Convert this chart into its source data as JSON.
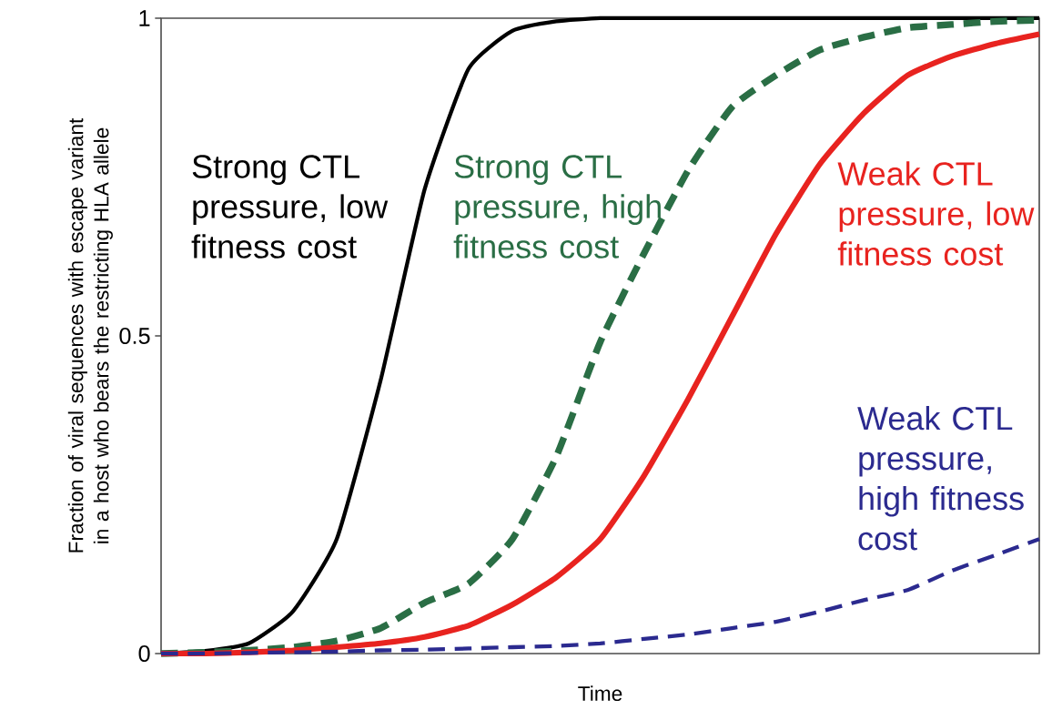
{
  "chart_data": {
    "type": "line",
    "xlabel": "Time",
    "ylabel": "Fraction of viral sequences with escape variant in a host who bears the restricting HLA allele",
    "categories": [
      null,
      null,
      null,
      null,
      null,
      null,
      null,
      null,
      null,
      null,
      null,
      null,
      null,
      null,
      null,
      null,
      null,
      null,
      null,
      null,
      null
    ],
    "ylim": [
      0,
      1
    ],
    "yticks": [
      0,
      0.5,
      1
    ],
    "tick_labels": "y",
    "series": [
      {
        "name": "Strong CTL pressure, low fitness cost",
        "color": "#000000",
        "line_style": "solid",
        "values": [
          0,
          0.004,
          0.016,
          0.066,
          0.18,
          0.43,
          0.73,
          0.92,
          0.98,
          0.995,
          1,
          1,
          1,
          1,
          1,
          1,
          1,
          1,
          1,
          1,
          1
        ]
      },
      {
        "name": "Strong CTL pressure, high fitness cost",
        "color": "#2a6e45",
        "line_style": "dashed",
        "values": [
          0,
          0.002,
          0.005,
          0.01,
          0.02,
          0.04,
          0.08,
          0.11,
          0.18,
          0.31,
          0.49,
          0.63,
          0.76,
          0.86,
          0.91,
          0.95,
          0.97,
          0.985,
          0.99,
          0.995,
          0.997
        ]
      },
      {
        "name": "Weak CTL pressure, low fitness cost",
        "color": "#e8231f",
        "line_style": "solid",
        "values": [
          0,
          0,
          0.002,
          0.005,
          0.01,
          0.016,
          0.026,
          0.044,
          0.077,
          0.12,
          0.18,
          0.28,
          0.4,
          0.53,
          0.66,
          0.77,
          0.85,
          0.91,
          0.94,
          0.96,
          0.975
        ]
      },
      {
        "name": "Weak CTL pressure, high fitness cost",
        "color": "#2b2a8f",
        "line_style": "dashed",
        "values": [
          0,
          0,
          0.001,
          0.002,
          0.003,
          0.005,
          0.006,
          0.008,
          0.01,
          0.012,
          0.016,
          0.023,
          0.03,
          0.04,
          0.05,
          0.066,
          0.084,
          0.1,
          0.13,
          0.155,
          0.18
        ]
      }
    ]
  }
}
